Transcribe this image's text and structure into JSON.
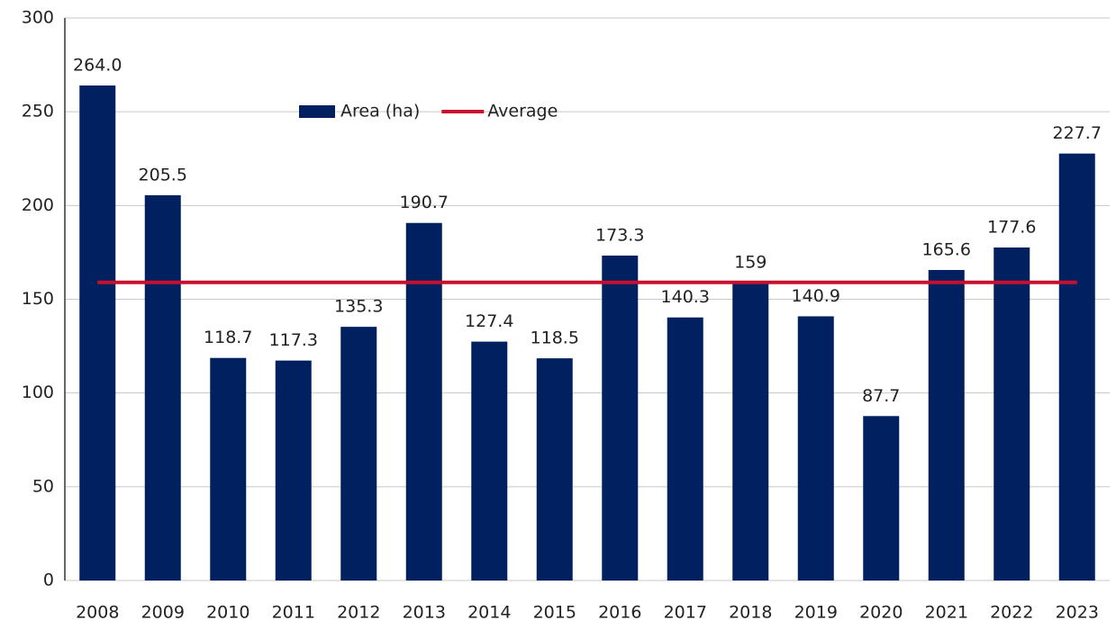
{
  "chart_data": {
    "type": "bar",
    "categories": [
      "2008",
      "2009",
      "2010",
      "2011",
      "2012",
      "2013",
      "2014",
      "2015",
      "2016",
      "2017",
      "2018",
      "2019",
      "2020",
      "2021",
      "2022",
      "2023"
    ],
    "series": [
      {
        "name": "Area (ha)",
        "color": "#002060",
        "type": "bar",
        "values": [
          264.0,
          205.5,
          118.7,
          117.3,
          135.3,
          190.7,
          127.4,
          118.5,
          173.3,
          140.3,
          159,
          140.9,
          87.7,
          165.6,
          177.6,
          227.7
        ],
        "value_labels": [
          "264.0",
          "205.5",
          "118.7",
          "117.3",
          "135.3",
          "190.7",
          "127.4",
          "118.5",
          "173.3",
          "140.3",
          "159",
          "140.9",
          "87.7",
          "165.6",
          "177.6",
          "227.7"
        ]
      },
      {
        "name": "Average",
        "color": "#c8102e",
        "type": "line",
        "values": [
          159,
          159,
          159,
          159,
          159,
          159,
          159,
          159,
          159,
          159,
          159,
          159,
          159,
          159,
          159,
          159
        ]
      }
    ],
    "ylim": [
      0,
      300
    ],
    "yticks": [
      0,
      50,
      100,
      150,
      200,
      250,
      300
    ],
    "grid": true,
    "legend": "top"
  }
}
